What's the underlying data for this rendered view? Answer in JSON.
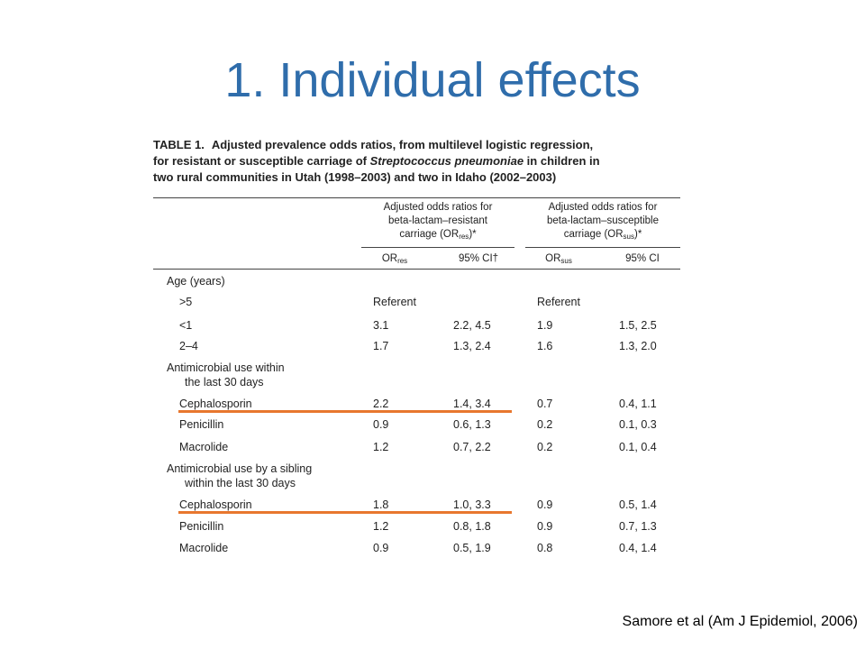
{
  "slide": {
    "title": "1. Individual effects",
    "source": "Samore et al (Am J Epidemiol,  2006)",
    "highlight_color": "#e8772e",
    "title_color": "#2f6dab"
  },
  "table": {
    "label": "TABLE 1.",
    "caption_line1": "Adjusted prevalence odds ratios, from multilevel logistic regression,",
    "caption_line2_pre": "for resistant or susceptible carriage of ",
    "caption_line2_italic": "Streptococcus pneumoniae",
    "caption_line2_post": " in children in",
    "caption_line3": "two rural communities in Utah (1998–2003) and two in Idaho (2002–2003)",
    "group_res": {
      "line1": "Adjusted odds ratios for",
      "line2": "beta-lactam–resistant",
      "line3_pre": "carriage (OR",
      "line3_sub": "res",
      "line3_post": ")*"
    },
    "group_sus": {
      "line1": "Adjusted odds ratios for",
      "line2": "beta-lactam–susceptible",
      "line3_pre": "carriage (OR",
      "line3_sub": "sus",
      "line3_post": ")*"
    },
    "col_or_res": "OR",
    "col_or_res_sub": "res",
    "col_ci_res": "95% CI†",
    "col_or_sus": "OR",
    "col_or_sus_sub": "sus",
    "col_ci_sus": "95% CI",
    "rows": [
      {
        "label": "Age (years)",
        "indent": 0,
        "or_res": "",
        "ci_res": "",
        "or_sus": "",
        "ci_sus": ""
      },
      {
        "label": ">5",
        "indent": 1,
        "or_res": "Referent",
        "ci_res": "",
        "or_sus": "Referent",
        "ci_sus": ""
      },
      {
        "label": "<1",
        "indent": 1,
        "or_res": "3.1",
        "ci_res": "2.2, 4.5",
        "or_sus": "1.9",
        "ci_sus": "1.5, 2.5"
      },
      {
        "label": "2–4",
        "indent": 1,
        "or_res": "1.7",
        "ci_res": "1.3, 2.4",
        "or_sus": "1.6",
        "ci_sus": "1.3, 2.0"
      },
      {
        "label": "Antimicrobial use within",
        "indent": 0,
        "or_res": "",
        "ci_res": "",
        "or_sus": "",
        "ci_sus": ""
      },
      {
        "label": "the last 30 days",
        "indent": 2,
        "or_res": "",
        "ci_res": "",
        "or_sus": "",
        "ci_sus": ""
      },
      {
        "label": "Cephalosporin",
        "indent": 1,
        "or_res": "2.2",
        "ci_res": "1.4, 3.4",
        "or_sus": "0.7",
        "ci_sus": "0.4, 1.1"
      },
      {
        "label": "Penicillin",
        "indent": 1,
        "or_res": "0.9",
        "ci_res": "0.6, 1.3",
        "or_sus": "0.2",
        "ci_sus": "0.1, 0.3"
      },
      {
        "label": "Macrolide",
        "indent": 1,
        "or_res": "1.2",
        "ci_res": "0.7, 2.2",
        "or_sus": "0.2",
        "ci_sus": "0.1, 0.4"
      },
      {
        "label": "Antimicrobial use by a sibling",
        "indent": 0,
        "or_res": "",
        "ci_res": "",
        "or_sus": "",
        "ci_sus": ""
      },
      {
        "label": "within the last 30 days",
        "indent": 2,
        "or_res": "",
        "ci_res": "",
        "or_sus": "",
        "ci_sus": ""
      },
      {
        "label": "Cephalosporin",
        "indent": 1,
        "or_res": "1.8",
        "ci_res": "1.0, 3.3",
        "or_sus": "0.9",
        "ci_sus": "0.5, 1.4"
      },
      {
        "label": "Penicillin",
        "indent": 1,
        "or_res": "1.2",
        "ci_res": "0.8, 1.8",
        "or_sus": "0.9",
        "ci_sus": "0.7, 1.3"
      },
      {
        "label": "Macrolide",
        "indent": 1,
        "or_res": "0.9",
        "ci_res": "0.5, 1.9",
        "or_sus": "0.8",
        "ci_sus": "0.4, 1.4"
      }
    ]
  }
}
